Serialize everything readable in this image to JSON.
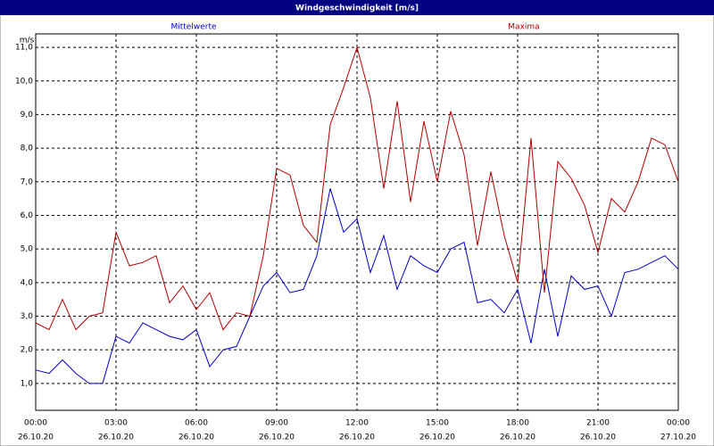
{
  "chart_data": {
    "type": "line",
    "title": "Windgeschwindigkeit [m/s]",
    "y_unit": "m/s",
    "x": [
      0,
      0.5,
      1,
      1.5,
      2,
      2.5,
      3,
      3.5,
      4,
      4.5,
      5,
      5.5,
      6,
      6.5,
      7,
      7.5,
      8,
      8.5,
      9,
      9.5,
      10,
      10.5,
      11,
      11.5,
      12,
      12.5,
      13,
      13.5,
      14,
      14.5,
      15,
      15.5,
      16,
      16.5,
      17,
      17.5,
      18,
      18.5,
      19,
      19.5,
      20,
      20.5,
      21,
      21.5,
      22,
      22.5,
      23,
      23.5,
      24
    ],
    "series": [
      {
        "name": "Mittelwerte",
        "color": "#0000c0",
        "values": [
          1.4,
          1.3,
          1.7,
          1.3,
          1.0,
          1.0,
          2.4,
          2.2,
          2.8,
          2.6,
          2.4,
          2.3,
          2.6,
          1.5,
          2.0,
          2.1,
          3.0,
          3.9,
          4.3,
          3.7,
          3.8,
          4.8,
          6.8,
          5.5,
          5.9,
          4.3,
          5.4,
          3.8,
          4.8,
          4.5,
          4.3,
          5.0,
          5.2,
          3.4,
          3.5,
          3.1,
          3.8,
          2.2,
          4.4,
          2.4,
          4.2,
          3.8,
          3.9,
          3.0,
          4.3,
          4.4,
          4.6,
          4.8,
          4.4
        ]
      },
      {
        "name": "Maxima",
        "color": "#b00000",
        "values": [
          2.8,
          2.6,
          3.5,
          2.6,
          3.0,
          3.1,
          5.5,
          4.5,
          4.6,
          4.8,
          3.4,
          3.9,
          3.2,
          3.7,
          2.6,
          3.1,
          3.0,
          4.8,
          7.4,
          7.2,
          5.7,
          5.2,
          8.7,
          9.8,
          11.0,
          9.5,
          6.8,
          9.4,
          6.4,
          8.8,
          7.0,
          9.1,
          7.8,
          5.1,
          7.3,
          5.4,
          4.0,
          8.3,
          3.7,
          7.6,
          7.1,
          6.3,
          4.9,
          6.5,
          6.1,
          7.0,
          8.3,
          8.1,
          7.0
        ]
      }
    ],
    "xlim": [
      0,
      24
    ],
    "ylim": [
      0.2,
      11.4
    ],
    "xticks": [
      {
        "value": 0,
        "label": "00:00"
      },
      {
        "value": 3,
        "label": "03:00"
      },
      {
        "value": 6,
        "label": "06:00"
      },
      {
        "value": 9,
        "label": "09:00"
      },
      {
        "value": 12,
        "label": "12:00"
      },
      {
        "value": 15,
        "label": "15:00"
      },
      {
        "value": 18,
        "label": "18:00"
      },
      {
        "value": 21,
        "label": "21:00"
      },
      {
        "value": 24,
        "label": "00:00"
      }
    ],
    "xtick_dates": [
      "26.10.20",
      "26.10.20",
      "26.10.20",
      "26.10.20",
      "26.10.20",
      "26.10.20",
      "26.10.20",
      "26.10.20",
      "27.10.20"
    ],
    "yticks": [
      {
        "value": 1,
        "label": "1,0"
      },
      {
        "value": 2,
        "label": "2,0"
      },
      {
        "value": 3,
        "label": "3,0"
      },
      {
        "value": 4,
        "label": "4,0"
      },
      {
        "value": 5,
        "label": "5,0"
      },
      {
        "value": 6,
        "label": "6,0"
      },
      {
        "value": 7,
        "label": "7,0"
      },
      {
        "value": 8,
        "label": "8,0"
      },
      {
        "value": 9,
        "label": "9,0"
      },
      {
        "value": 10,
        "label": "10,0"
      },
      {
        "value": 11,
        "label": "11,0"
      }
    ],
    "grid": true
  }
}
